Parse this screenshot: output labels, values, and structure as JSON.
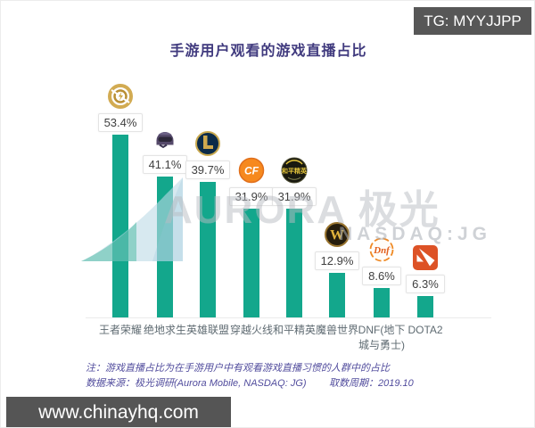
{
  "badges": {
    "tg": "TG: MYYJJPP",
    "site": "www.chinayhq.com"
  },
  "watermark": {
    "brand": "AURORA 极光",
    "ticker": "NASDAQ:JG"
  },
  "chart_data": {
    "type": "bar",
    "title": "手游用户观看的游戏直播占比",
    "categories": [
      "王者荣耀",
      "绝地求生",
      "英雄联盟",
      "穿越火线",
      "和平精英",
      "魔兽世界",
      "DNF(地下城与勇士)",
      "DOTA2"
    ],
    "category_lines": [
      [
        "王者荣耀"
      ],
      [
        "绝地求生"
      ],
      [
        "英雄联盟"
      ],
      [
        "穿越火线"
      ],
      [
        "和平精英"
      ],
      [
        "魔兽世界"
      ],
      [
        "DNF(地下",
        "城与勇士)"
      ],
      [
        "DOTA2"
      ]
    ],
    "values": [
      53.4,
      41.1,
      39.7,
      31.9,
      31.9,
      12.9,
      8.6,
      6.3
    ],
    "value_labels": [
      "53.4%",
      "41.1%",
      "39.7%",
      "31.9%",
      "31.9%",
      "12.9%",
      "8.6%",
      "6.3%"
    ],
    "icons": [
      "honor-of-kings-icon",
      "pubg-helmet-icon",
      "league-of-legends-icon",
      "crossfire-icon",
      "peace-elite-icon",
      "world-of-warcraft-icon",
      "dnf-icon",
      "dota2-icon"
    ],
    "bar_color": "#13a78c",
    "ylim": [
      0,
      56
    ],
    "grid": false,
    "legend": false,
    "xlabel": "",
    "ylabel": ""
  },
  "notes": {
    "note": "注：游戏直播占比为在手游用户中有观看游戏直播习惯的人群中的占比",
    "source": "数据来源：极光调研(Aurora Mobile, NASDAQ: JG)",
    "period": "取数周期：2019.10"
  }
}
